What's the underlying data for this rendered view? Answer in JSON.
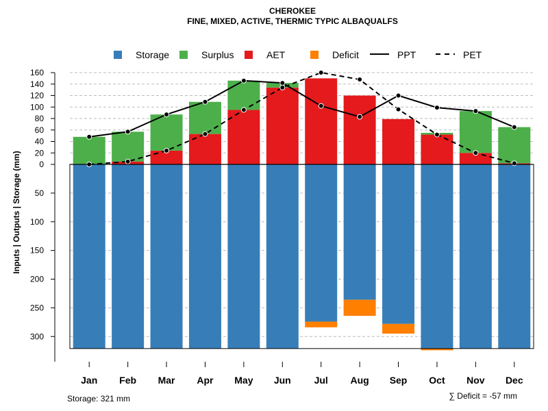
{
  "chart_data": {
    "type": "bar",
    "title": "CHEROKEE",
    "subtitle": "FINE, MIXED, ACTIVE, THERMIC TYPIC ALBAQUALFS",
    "ylabel": "Inputs | Outputs | Storage     (mm)",
    "ylim_top": [
      0,
      160
    ],
    "ylim_bottom": [
      0,
      300
    ],
    "yticks_top": [
      0,
      20,
      40,
      60,
      80,
      100,
      120,
      140,
      160
    ],
    "yticks_bottom": [
      50,
      100,
      150,
      200,
      250,
      300
    ],
    "categories": [
      "Jan",
      "Feb",
      "Mar",
      "Apr",
      "May",
      "Jun",
      "Jul",
      "Aug",
      "Sep",
      "Oct",
      "Nov",
      "Dec"
    ],
    "legend": [
      "Storage",
      "Surplus",
      "AET",
      "Deficit",
      "PPT",
      "PET"
    ],
    "colors": {
      "storage": "#377eb8",
      "surplus": "#4daf4a",
      "aet": "#e41a1c",
      "deficit": "#ff7f00",
      "line": "#000000"
    },
    "series": [
      {
        "name": "PPT",
        "values": [
          48,
          57,
          87,
          109,
          146,
          142,
          102,
          83,
          120,
          99,
          93,
          65
        ]
      },
      {
        "name": "PET",
        "values": [
          0,
          5,
          24,
          53,
          95,
          134,
          160,
          148,
          96,
          52,
          20,
          2
        ]
      },
      {
        "name": "AET",
        "values": [
          0,
          5,
          24,
          53,
          95,
          134,
          150,
          120,
          79,
          52,
          20,
          2
        ]
      },
      {
        "name": "Surplus",
        "values": [
          48,
          52,
          63,
          56,
          51,
          8,
          0,
          0,
          0,
          3,
          73,
          63
        ]
      },
      {
        "name": "Storage",
        "values": [
          321,
          321,
          321,
          321,
          321,
          321,
          274,
          236,
          278,
          321,
          321,
          321
        ]
      },
      {
        "name": "Deficit",
        "values": [
          0,
          0,
          0,
          0,
          0,
          0,
          10,
          28,
          17,
          3,
          0,
          0
        ]
      }
    ],
    "storage_note": "Storage: 321 mm",
    "deficit_note": "∑ Deficit = -57 mm"
  }
}
